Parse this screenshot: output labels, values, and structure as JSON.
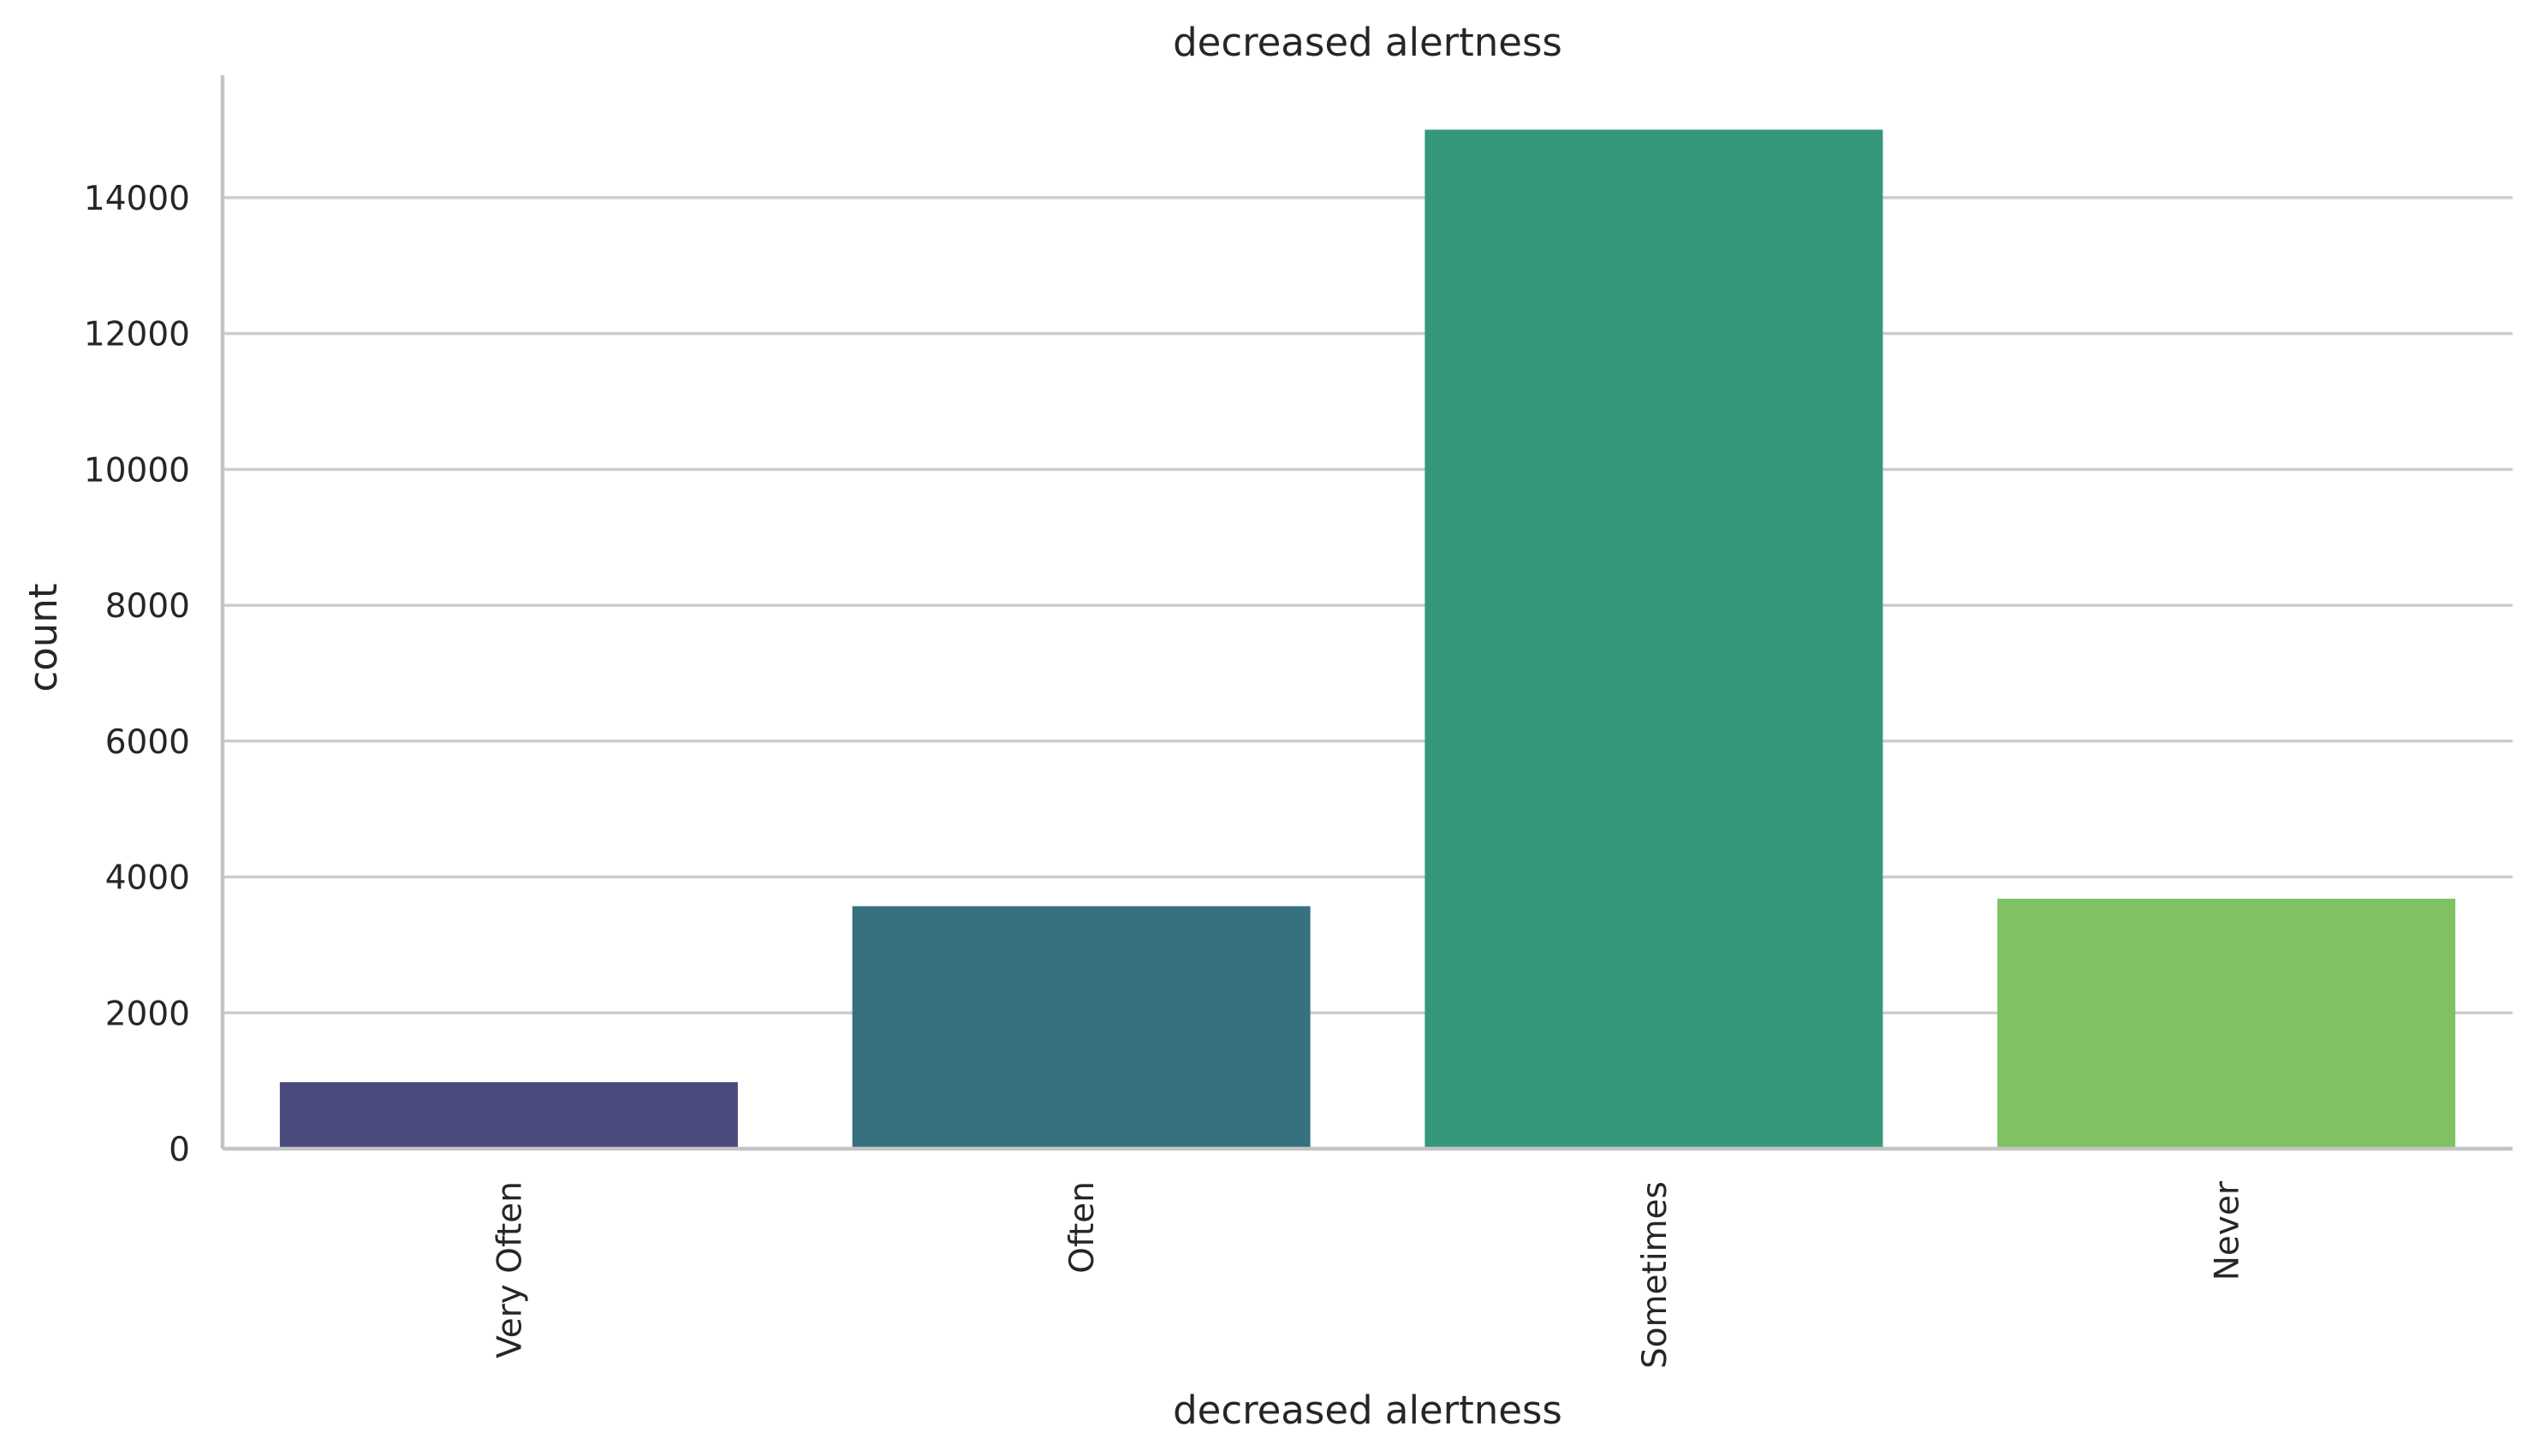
{
  "chart_data": {
    "type": "bar",
    "title": "decreased alertness",
    "xlabel": "decreased alertness",
    "ylabel": "count",
    "categories": [
      "Very Often",
      "Often",
      "Sometimes",
      "Never"
    ],
    "values": [
      980,
      3570,
      15000,
      3680
    ],
    "colors": [
      "#4b4a7d",
      "#377180",
      "#35987b",
      "#80c262"
    ],
    "ylim": [
      0,
      15800
    ],
    "yticks": [
      0,
      2000,
      4000,
      6000,
      8000,
      10000,
      12000,
      14000
    ],
    "ytick_labels": [
      "0",
      "2000",
      "4000",
      "6000",
      "8000",
      "10000",
      "12000",
      "14000"
    ],
    "grid": "horizontal"
  }
}
